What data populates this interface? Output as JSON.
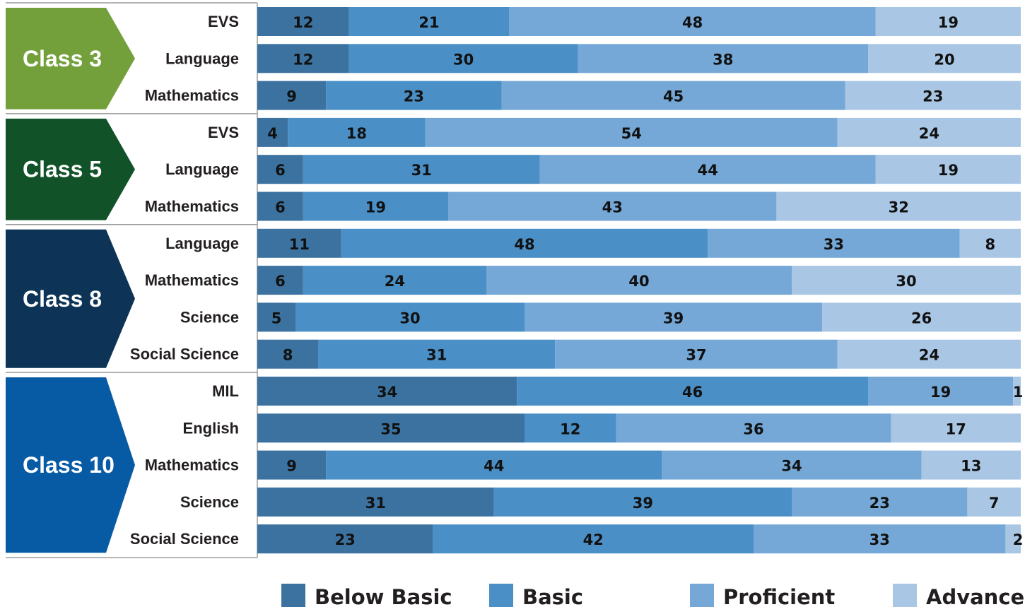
{
  "chart_data": {
    "type": "bar",
    "orientation": "horizontal",
    "stacked": true,
    "xlim": [
      0,
      100
    ],
    "grid": false,
    "legend_position": "bottom",
    "series": [
      {
        "name": "Below Basic",
        "color": "#3b72a0"
      },
      {
        "name": "Basic",
        "color": "#4a8fc6"
      },
      {
        "name": "Proficient",
        "color": "#75a8d6"
      },
      {
        "name": "Advance",
        "color": "#a9c6e4"
      }
    ],
    "groups": [
      {
        "label": "Class 3",
        "color": "#74a03c",
        "rows": [
          {
            "subject": "EVS",
            "values": [
              12,
              21,
              48,
              19
            ]
          },
          {
            "subject": "Language",
            "values": [
              12,
              30,
              38,
              20
            ]
          },
          {
            "subject": "Mathematics",
            "values": [
              9,
              23,
              45,
              23
            ]
          }
        ]
      },
      {
        "label": "Class 5",
        "color": "#125229",
        "rows": [
          {
            "subject": "EVS",
            "values": [
              4,
              18,
              54,
              24
            ]
          },
          {
            "subject": "Language",
            "values": [
              6,
              31,
              44,
              19
            ]
          },
          {
            "subject": "Mathematics",
            "values": [
              6,
              19,
              43,
              32
            ]
          }
        ]
      },
      {
        "label": "Class 8",
        "color": "#0d3456",
        "rows": [
          {
            "subject": "Language",
            "values": [
              11,
              48,
              33,
              8
            ]
          },
          {
            "subject": "Mathematics",
            "values": [
              6,
              24,
              40,
              30
            ]
          },
          {
            "subject": "Science",
            "values": [
              5,
              30,
              39,
              26
            ]
          },
          {
            "subject": "Social Science",
            "values": [
              8,
              31,
              37,
              24
            ]
          }
        ]
      },
      {
        "label": "Class 10",
        "color": "#075aa4",
        "rows": [
          {
            "subject": "MIL",
            "values": [
              34,
              46,
              19,
              1
            ]
          },
          {
            "subject": "English",
            "values": [
              35,
              12,
              36,
              17
            ]
          },
          {
            "subject": "Mathematics",
            "values": [
              9,
              44,
              34,
              13
            ]
          },
          {
            "subject": "Science",
            "values": [
              31,
              39,
              23,
              7
            ]
          },
          {
            "subject": "Social Science",
            "values": [
              23,
              42,
              33,
              2
            ]
          }
        ]
      }
    ]
  }
}
